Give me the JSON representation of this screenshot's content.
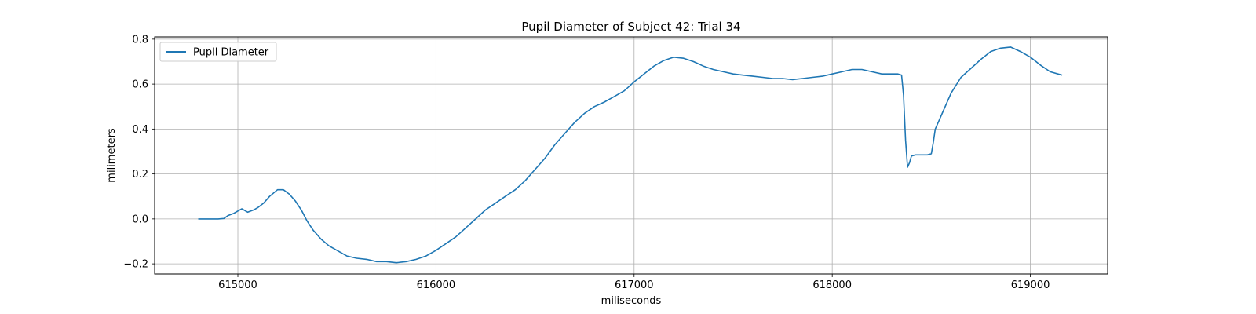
{
  "chart_data": {
    "type": "line",
    "title": "Pupil Diameter of Subject 42: Trial 34",
    "xlabel": "miliseconds",
    "ylabel": "milimeters",
    "xlim": [
      614580,
      619390
    ],
    "ylim": [
      -0.245,
      0.81
    ],
    "xticks": [
      615000,
      616000,
      617000,
      618000,
      619000
    ],
    "xtick_labels": [
      "615000",
      "616000",
      "617000",
      "618000",
      "619000"
    ],
    "yticks": [
      -0.2,
      0.0,
      0.2,
      0.4,
      0.6,
      0.8
    ],
    "ytick_labels": [
      "−0.2",
      "0.0",
      "0.2",
      "0.4",
      "0.6",
      "0.8"
    ],
    "grid": true,
    "legend_position": "upper-left",
    "series": [
      {
        "name": "Pupil Diameter",
        "color": "#1f77b4",
        "x": [
          614800,
          614900,
          614930,
          614950,
          614980,
          615000,
          615020,
          615050,
          615080,
          615100,
          615130,
          615160,
          615200,
          615230,
          615260,
          615290,
          615320,
          615350,
          615380,
          615420,
          615460,
          615500,
          615550,
          615600,
          615650,
          615700,
          615750,
          615800,
          615850,
          615900,
          615950,
          616000,
          616050,
          616100,
          616150,
          616200,
          616250,
          616300,
          616350,
          616400,
          616450,
          616500,
          616550,
          616600,
          616650,
          616700,
          616750,
          616800,
          616850,
          616900,
          616950,
          617000,
          617050,
          617100,
          617150,
          617200,
          617250,
          617300,
          617350,
          617400,
          617450,
          617500,
          617550,
          617600,
          617650,
          617700,
          617750,
          617800,
          617850,
          617900,
          617950,
          618000,
          618050,
          618100,
          618150,
          618200,
          618250,
          618300,
          618330,
          618350,
          618360,
          618370,
          618380,
          618390,
          618400,
          618420,
          618440,
          618460,
          618480,
          618500,
          618510,
          618520,
          618540,
          618560,
          618600,
          618650,
          618700,
          618750,
          618800,
          618850,
          618900,
          618950,
          619000,
          619050,
          619100,
          619160
        ],
        "y": [
          0.0,
          0.0,
          0.002,
          0.015,
          0.025,
          0.035,
          0.045,
          0.03,
          0.04,
          0.05,
          0.07,
          0.1,
          0.13,
          0.13,
          0.11,
          0.08,
          0.04,
          -0.01,
          -0.05,
          -0.09,
          -0.12,
          -0.14,
          -0.165,
          -0.175,
          -0.18,
          -0.19,
          -0.19,
          -0.195,
          -0.19,
          -0.18,
          -0.165,
          -0.14,
          -0.11,
          -0.08,
          -0.04,
          0.0,
          0.04,
          0.07,
          0.1,
          0.13,
          0.17,
          0.22,
          0.27,
          0.33,
          0.38,
          0.43,
          0.47,
          0.5,
          0.52,
          0.545,
          0.57,
          0.61,
          0.645,
          0.68,
          0.705,
          0.72,
          0.715,
          0.7,
          0.68,
          0.665,
          0.655,
          0.645,
          0.64,
          0.635,
          0.63,
          0.625,
          0.625,
          0.62,
          0.625,
          0.63,
          0.635,
          0.645,
          0.655,
          0.665,
          0.665,
          0.655,
          0.645,
          0.645,
          0.645,
          0.64,
          0.55,
          0.35,
          0.23,
          0.25,
          0.28,
          0.285,
          0.285,
          0.285,
          0.285,
          0.29,
          0.34,
          0.4,
          0.44,
          0.48,
          0.56,
          0.63,
          0.67,
          0.71,
          0.745,
          0.76,
          0.765,
          0.745,
          0.72,
          0.685,
          0.655,
          0.64
        ]
      }
    ]
  }
}
